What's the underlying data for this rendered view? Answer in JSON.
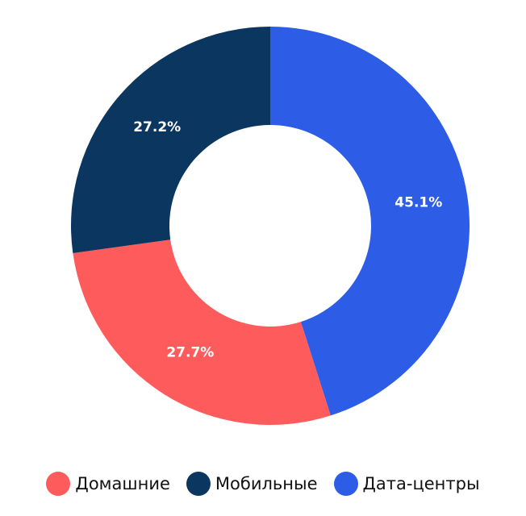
{
  "chart_data": {
    "type": "pie",
    "donut": true,
    "title": "",
    "legend_position": "bottom",
    "series": [
      {
        "name": "Домашние",
        "value": 27.7,
        "label": "27.7%",
        "color": "#fe5c5c"
      },
      {
        "name": "Мобильные",
        "value": 27.2,
        "label": "27.2%",
        "color": "#0b3660"
      },
      {
        "name": "Дата-центры",
        "value": 45.1,
        "label": "45.1%",
        "color": "#2d5ce6"
      }
    ]
  }
}
